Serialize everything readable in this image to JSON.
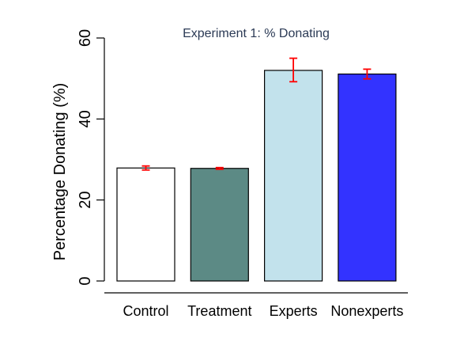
{
  "chart_data": {
    "type": "bar",
    "title": "Experiment 1: % Donating",
    "xlabel": "",
    "ylabel": "Percentage Donating (%)",
    "ylim": [
      0,
      60
    ],
    "yticks": [
      "0",
      "20",
      "40",
      "60"
    ],
    "categories": [
      "Control",
      "Treatment",
      "Experts",
      "Nonexperts"
    ],
    "values": [
      27.9,
      27.8,
      52.0,
      51.1
    ],
    "errors": [
      {
        "low": 27.4,
        "high": 28.4
      },
      {
        "low": 27.6,
        "high": 28.0
      },
      {
        "low": 49.2,
        "high": 55.0
      },
      {
        "low": 49.9,
        "high": 52.3
      }
    ],
    "colors": [
      "#ffffff",
      "#5c8a85",
      "#c2e2ec",
      "#3333ff"
    ],
    "bar_stroke": "#000000",
    "error_color": "#ff0000",
    "grid": false
  }
}
